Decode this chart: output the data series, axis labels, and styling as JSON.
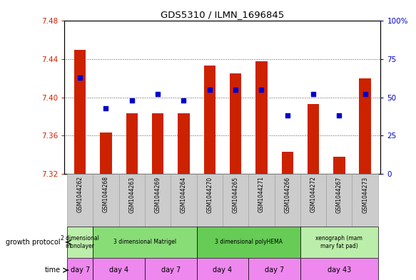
{
  "title": "GDS5310 / ILMN_1696845",
  "samples": [
    "GSM1044262",
    "GSM1044268",
    "GSM1044263",
    "GSM1044269",
    "GSM1044264",
    "GSM1044270",
    "GSM1044265",
    "GSM1044271",
    "GSM1044266",
    "GSM1044272",
    "GSM1044267",
    "GSM1044273"
  ],
  "bar_values": [
    7.45,
    7.363,
    7.383,
    7.383,
    7.383,
    7.433,
    7.425,
    7.438,
    7.343,
    7.393,
    7.338,
    7.42
  ],
  "blue_dot_values": [
    63,
    43,
    48,
    52,
    48,
    55,
    55,
    55,
    38,
    52,
    38,
    52
  ],
  "ylim_left": [
    7.32,
    7.48
  ],
  "ylim_right": [
    0,
    100
  ],
  "yticks_left": [
    7.32,
    7.36,
    7.4,
    7.44,
    7.48
  ],
  "yticks_right": [
    0,
    25,
    50,
    75,
    100
  ],
  "bar_color": "#cc2200",
  "dot_color": "#0000cc",
  "bar_bottom": 7.32,
  "growth_protocol_groups": [
    {
      "label": "2 dimensional\nmonolayer",
      "start": 0,
      "end": 1,
      "color": "#bbeeaa"
    },
    {
      "label": "3 dimensional Matrigel",
      "start": 1,
      "end": 5,
      "color": "#88dd77"
    },
    {
      "label": "3 dimensional polyHEMA",
      "start": 5,
      "end": 9,
      "color": "#66cc55"
    },
    {
      "label": "xenograph (mam\nmary fat pad)",
      "start": 9,
      "end": 12,
      "color": "#bbeeaa"
    }
  ],
  "time_groups": [
    {
      "label": "day 7",
      "start": 0,
      "end": 1,
      "color": "#ee88ee"
    },
    {
      "label": "day 4",
      "start": 1,
      "end": 3,
      "color": "#ee88ee"
    },
    {
      "label": "day 7",
      "start": 3,
      "end": 5,
      "color": "#ee88ee"
    },
    {
      "label": "day 4",
      "start": 5,
      "end": 7,
      "color": "#ee88ee"
    },
    {
      "label": "day 7",
      "start": 7,
      "end": 9,
      "color": "#ee88ee"
    },
    {
      "label": "day 43",
      "start": 9,
      "end": 12,
      "color": "#ee88ee"
    }
  ],
  "left_label_color": "#cc2200",
  "right_label_color": "#0000cc",
  "grid_color": "#555555",
  "bg_color": "#ffffff",
  "sample_bg_color": "#cccccc"
}
